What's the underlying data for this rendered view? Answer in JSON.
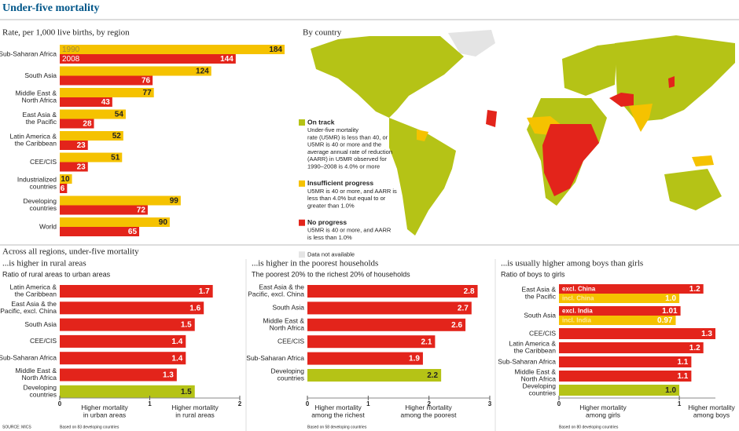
{
  "title": "Under-five mortality",
  "map": {
    "title": "By country",
    "legend": [
      {
        "label": "On track",
        "description": "Under-five mortality\nrate (U5MR) is less than 40, or\nU5MR is 40 or more and the\naverage annual rate of reduction\n(AARR) in U5MR observed for\n1990–2008 is 4.0% or more",
        "color": "#b5c316"
      },
      {
        "label": "Insufficient progress",
        "description": "U5MR is 40 or more, and AARR is\nless than 4.0% but equal to or\ngreater than 1.0%",
        "color": "#f5c200"
      },
      {
        "label": "No progress",
        "description": "U5MR is 40 or more, and AARR\nis less than 1.0%",
        "color": "#e3241b"
      },
      {
        "label": "Data not available",
        "color": "#e4e4e4"
      }
    ]
  },
  "section_title": "Across all regions, under-five mortality",
  "source": "SOURCE: MICS",
  "chart_data": [
    {
      "type": "bar",
      "title": "Rate, per 1,000 live births, by region",
      "categories": [
        "Sub-Saharan Africa",
        "South Asia",
        "Middle East &\nNorth Africa",
        "East Asia &\nthe Pacific",
        "Latin America &\nthe Caribbean",
        "CEE/CIS",
        "Industrialized\ncountries",
        "Developing\ncountries",
        "World"
      ],
      "series": [
        {
          "name": "1990",
          "color": "#f5c200",
          "values": [
            184,
            124,
            77,
            54,
            52,
            51,
            10,
            99,
            90
          ]
        },
        {
          "name": "2008",
          "color": "#e3241b",
          "values": [
            144,
            76,
            43,
            28,
            23,
            23,
            6,
            72,
            65
          ]
        }
      ],
      "xlim": [
        0,
        184
      ]
    },
    {
      "type": "bar",
      "title": "...is higher in rural areas",
      "subtitle": "Ratio of rural areas to urban areas",
      "categories": [
        "Latin America &\nthe Caribbean",
        "East Asia & the\nPacific, excl. China",
        "South Asia",
        "CEE/CIS",
        "Sub-Saharan Africa",
        "Middle East &\nNorth Africa",
        "Developing\ncountries"
      ],
      "values": [
        1.7,
        1.6,
        1.5,
        1.4,
        1.4,
        1.3,
        1.5
      ],
      "value_labels": [
        "1.7",
        "1.6",
        "1.5",
        "1.4",
        "1.4",
        "1.3",
        "1.5"
      ],
      "colors": [
        "#e3241b",
        "#e3241b",
        "#e3241b",
        "#e3241b",
        "#e3241b",
        "#e3241b",
        "#b5c316"
      ],
      "xlim": [
        0,
        2
      ],
      "xticks": [
        0,
        1,
        2
      ],
      "axis_labels": [
        "Higher mortality\nin urban areas",
        "Higher mortality\nin rural areas"
      ],
      "note": "Based on 83 developing countries"
    },
    {
      "type": "bar",
      "title": "...is higher in the poorest households",
      "subtitle": "The poorest 20% to the richest 20% of households",
      "categories": [
        "East Asia & the\nPacific, excl. China",
        "South Asia",
        "Middle East &\nNorth Africa",
        "CEE/CIS",
        "Sub-Saharan Africa",
        "Developing\ncountries"
      ],
      "values": [
        2.8,
        2.7,
        2.6,
        2.1,
        1.9,
        2.2
      ],
      "value_labels": [
        "2.8",
        "2.7",
        "2.6",
        "2.1",
        "1.9",
        "2.2"
      ],
      "colors": [
        "#e3241b",
        "#e3241b",
        "#e3241b",
        "#e3241b",
        "#e3241b",
        "#b5c316"
      ],
      "xlim": [
        0,
        3
      ],
      "xticks": [
        0,
        1,
        2,
        3
      ],
      "axis_labels": [
        "Higher mortality\namong the richest",
        "Higher mortality\namong the poorest"
      ],
      "note": "Based on 58 developing countries"
    },
    {
      "type": "grouped-bar",
      "title": "...is usually higher among boys than girls",
      "subtitle": "Ratio of boys to girls",
      "groups": [
        {
          "category": "East Asia &\nthe Pacific",
          "bars": [
            {
              "label": "excl. China",
              "value": 1.2,
              "value_label": "1.2",
              "color": "#e3241b"
            },
            {
              "label": "incl. China",
              "value": 1,
              "value_label": "1.0",
              "color": "#f5c200"
            }
          ]
        },
        {
          "category": "South Asia",
          "bars": [
            {
              "label": "excl. India",
              "value": 1.01,
              "value_label": "1.01",
              "color": "#e3241b"
            },
            {
              "label": "incl. India",
              "value": 0.97,
              "value_label": "0.97",
              "color": "#f5c200"
            }
          ]
        },
        {
          "category": "CEE/CIS",
          "bars": [
            {
              "value": 1.3,
              "value_label": "1.3",
              "color": "#e3241b"
            }
          ]
        },
        {
          "category": "Latin America &\nthe Caribbean",
          "bars": [
            {
              "value": 1.2,
              "value_label": "1.2",
              "color": "#e3241b"
            }
          ]
        },
        {
          "category": "Sub-Saharan Africa",
          "bars": [
            {
              "value": 1.1,
              "value_label": "1.1",
              "color": "#e3241b"
            }
          ]
        },
        {
          "category": "Middle East &\nNorth Africa",
          "bars": [
            {
              "value": 1.1,
              "value_label": "1.1",
              "color": "#e3241b"
            }
          ]
        },
        {
          "category": "Developing\ncountries",
          "bars": [
            {
              "value": 1,
              "value_label": "1.0",
              "color": "#b5c316"
            }
          ]
        }
      ],
      "xlim": [
        0,
        1.3
      ],
      "xticks": [
        0,
        1
      ],
      "axis_labels": [
        "Higher mortality\namong girls",
        "Higher mortality\namong boys"
      ],
      "note": "Based on 80 developing countries"
    }
  ]
}
